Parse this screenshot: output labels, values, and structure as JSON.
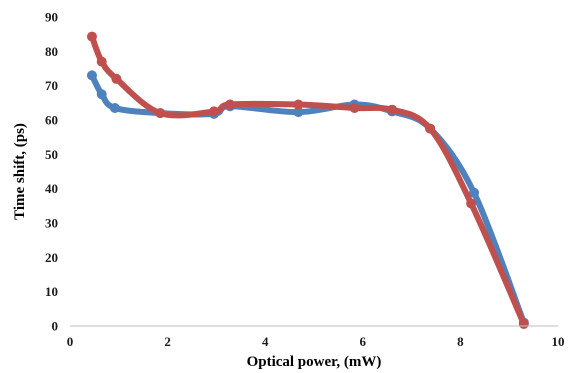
{
  "chart_data": {
    "type": "line",
    "title": "",
    "xlabel": "Optical power, (mW)",
    "ylabel": "Time shift, (ps)",
    "xlim": [
      0,
      10
    ],
    "ylim": [
      0,
      90
    ],
    "xticks": [
      0,
      2,
      4,
      6,
      8,
      10
    ],
    "yticks": [
      0,
      10,
      20,
      30,
      40,
      50,
      60,
      70,
      80,
      90
    ],
    "x_tick_labels": [
      "0",
      "2",
      "4",
      "6",
      "8",
      "10"
    ],
    "y_tick_labels": [
      "0",
      "10",
      "20",
      "30",
      "40",
      "50",
      "60",
      "70",
      "80",
      "90"
    ],
    "grid": false,
    "smooth": true,
    "series": [
      {
        "color": "#4f81bd",
        "points": [
          {
            "x": 0.45,
            "y": 73
          },
          {
            "x": 0.65,
            "y": 67.5
          },
          {
            "x": 0.92,
            "y": 63.5
          },
          {
            "x": 1.85,
            "y": 62
          },
          {
            "x": 2.95,
            "y": 61.8
          },
          {
            "x": 3.28,
            "y": 64
          },
          {
            "x": 4.68,
            "y": 62.3
          },
          {
            "x": 5.83,
            "y": 64.5
          },
          {
            "x": 6.6,
            "y": 62.5
          },
          {
            "x": 7.38,
            "y": 57.5
          },
          {
            "x": 8.28,
            "y": 38.8
          },
          {
            "x": 9.3,
            "y": 1
          }
        ]
      },
      {
        "color": "#c0504d",
        "points": [
          {
            "x": 0.45,
            "y": 84.3
          },
          {
            "x": 0.65,
            "y": 77
          },
          {
            "x": 0.95,
            "y": 72
          },
          {
            "x": 1.85,
            "y": 62
          },
          {
            "x": 2.95,
            "y": 62.5
          },
          {
            "x": 3.28,
            "y": 64.5
          },
          {
            "x": 4.68,
            "y": 64.5
          },
          {
            "x": 5.83,
            "y": 63.5
          },
          {
            "x": 6.6,
            "y": 63
          },
          {
            "x": 7.38,
            "y": 57.5
          },
          {
            "x": 8.22,
            "y": 35.7
          },
          {
            "x": 9.3,
            "y": 0.6
          }
        ]
      }
    ]
  }
}
